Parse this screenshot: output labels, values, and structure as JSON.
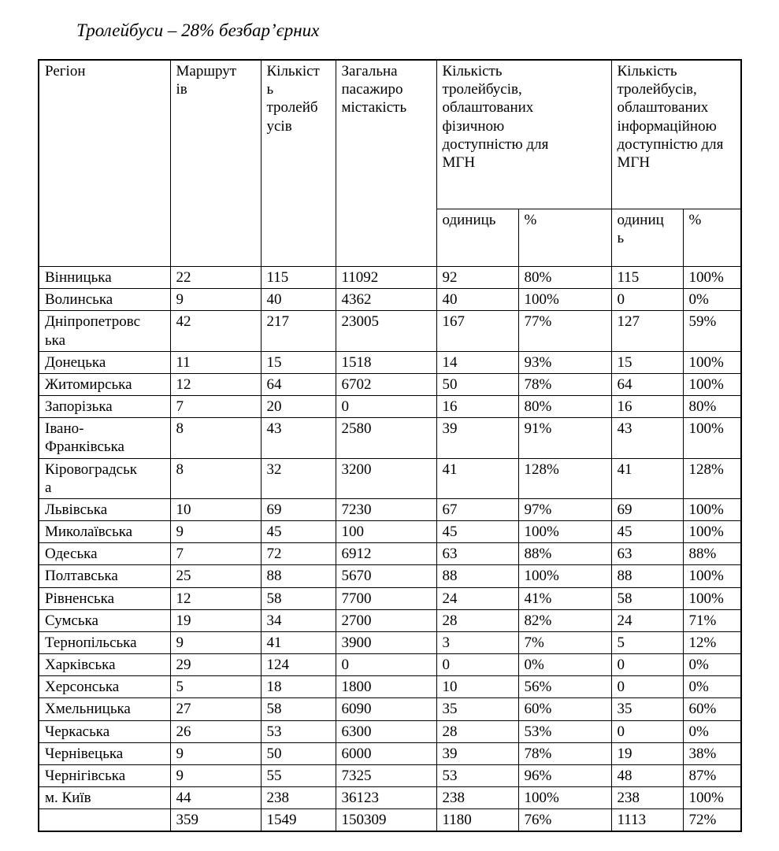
{
  "page": {
    "title": "Тролейбуси – 28% безбар’єрних"
  },
  "table": {
    "headers": {
      "region": "Регіон",
      "routes": "Маршрут\nів",
      "trolleybuses": "Кількіст\nь\nтролейб\nусів",
      "capacity": "Загальна\nпасажиро\nмістакість",
      "physical_group": "Кількість\nтролейбусів,\nоблаштованих\nфізичною\nдоступністю для\nМГН",
      "informational_group": "Кількість\nтролейбусів,\nоблаштованих\nінформаційною\nдоступністю для\nМГН",
      "units_physical": "одиниць",
      "percent_physical": "%",
      "units_informational": "одиниц\nь",
      "percent_informational": "%"
    },
    "rows": [
      {
        "region": "Вінницька",
        "routes": "22",
        "trolleybuses": "115",
        "capacity": "11092",
        "physical_units": "92",
        "physical_percent": "80%",
        "info_units": "115",
        "info_percent": "100%"
      },
      {
        "region": "Волинська",
        "routes": "9",
        "trolleybuses": "40",
        "capacity": "4362",
        "physical_units": "40",
        "physical_percent": "100%",
        "info_units": "0",
        "info_percent": "0%"
      },
      {
        "region": "Дніпропетровс\nька",
        "routes": "42",
        "trolleybuses": "217",
        "capacity": "23005",
        "physical_units": "167",
        "physical_percent": "77%",
        "info_units": "127",
        "info_percent": "59%"
      },
      {
        "region": "Донецька",
        "routes": "11",
        "trolleybuses": "15",
        "capacity": "1518",
        "physical_units": "14",
        "physical_percent": "93%",
        "info_units": "15",
        "info_percent": "100%"
      },
      {
        "region": "Житомирська",
        "routes": "12",
        "trolleybuses": "64",
        "capacity": "6702",
        "physical_units": "50",
        "physical_percent": "78%",
        "info_units": "64",
        "info_percent": "100%"
      },
      {
        "region": "Запорізька",
        "routes": "7",
        "trolleybuses": "20",
        "capacity": "0",
        "physical_units": "16",
        "physical_percent": "80%",
        "info_units": "16",
        "info_percent": "80%"
      },
      {
        "region": "Івано-\nФранківська",
        "routes": "8",
        "trolleybuses": "43",
        "capacity": "2580",
        "physical_units": "39",
        "physical_percent": "91%",
        "info_units": "43",
        "info_percent": "100%"
      },
      {
        "region": "Кіровоградськ\nа",
        "routes": "8",
        "trolleybuses": "32",
        "capacity": "3200",
        "physical_units": "41",
        "physical_percent": "128%",
        "info_units": "41",
        "info_percent": "128%"
      },
      {
        "region": "Львівська",
        "routes": "10",
        "trolleybuses": "69",
        "capacity": "7230",
        "physical_units": "67",
        "physical_percent": "97%",
        "info_units": "69",
        "info_percent": "100%"
      },
      {
        "region": "Миколаївська",
        "routes": "9",
        "trolleybuses": "45",
        "capacity": "100",
        "physical_units": "45",
        "physical_percent": "100%",
        "info_units": "45",
        "info_percent": "100%"
      },
      {
        "region": "Одеська",
        "routes": "7",
        "trolleybuses": "72",
        "capacity": "6912",
        "physical_units": "63",
        "physical_percent": "88%",
        "info_units": "63",
        "info_percent": "88%"
      },
      {
        "region": "Полтавська",
        "routes": "25",
        "trolleybuses": "88",
        "capacity": "5670",
        "physical_units": "88",
        "physical_percent": "100%",
        "info_units": "88",
        "info_percent": "100%"
      },
      {
        "region": "Рівненська",
        "routes": "12",
        "trolleybuses": "58",
        "capacity": "7700",
        "physical_units": "24",
        "physical_percent": "41%",
        "info_units": "58",
        "info_percent": "100%"
      },
      {
        "region": "Сумська",
        "routes": "19",
        "trolleybuses": "34",
        "capacity": "2700",
        "physical_units": "28",
        "physical_percent": "82%",
        "info_units": "24",
        "info_percent": "71%"
      },
      {
        "region": "Тернопільська",
        "routes": "9",
        "trolleybuses": "41",
        "capacity": "3900",
        "physical_units": "3",
        "physical_percent": "7%",
        "info_units": "5",
        "info_percent": "12%"
      },
      {
        "region": "Харківська",
        "routes": "29",
        "trolleybuses": "124",
        "capacity": "0",
        "physical_units": "0",
        "physical_percent": "0%",
        "info_units": "0",
        "info_percent": "0%"
      },
      {
        "region": "Херсонська",
        "routes": "5",
        "trolleybuses": "18",
        "capacity": "1800",
        "physical_units": "10",
        "physical_percent": "56%",
        "info_units": "0",
        "info_percent": "0%"
      },
      {
        "region": "Хмельницька",
        "routes": "27",
        "trolleybuses": "58",
        "capacity": "6090",
        "physical_units": "35",
        "physical_percent": "60%",
        "info_units": "35",
        "info_percent": "60%"
      },
      {
        "region": "Черкаська",
        "routes": "26",
        "trolleybuses": "53",
        "capacity": "6300",
        "physical_units": "28",
        "physical_percent": "53%",
        "info_units": "0",
        "info_percent": "0%"
      },
      {
        "region": "Чернівецька",
        "routes": "9",
        "trolleybuses": "50",
        "capacity": "6000",
        "physical_units": "39",
        "physical_percent": "78%",
        "info_units": "19",
        "info_percent": "38%"
      },
      {
        "region": "Чернігівська",
        "routes": "9",
        "trolleybuses": "55",
        "capacity": "7325",
        "physical_units": "53",
        "physical_percent": "96%",
        "info_units": "48",
        "info_percent": "87%"
      },
      {
        "region": "м. Київ",
        "routes": "44",
        "trolleybuses": "238",
        "capacity": "36123",
        "physical_units": "238",
        "physical_percent": "100%",
        "info_units": "238",
        "info_percent": "100%"
      }
    ],
    "totals": {
      "region": "",
      "routes": "359",
      "trolleybuses": "1549",
      "capacity": "150309",
      "physical_units": "1180",
      "physical_percent": "76%",
      "info_units": "1113",
      "info_percent": "72%"
    }
  }
}
